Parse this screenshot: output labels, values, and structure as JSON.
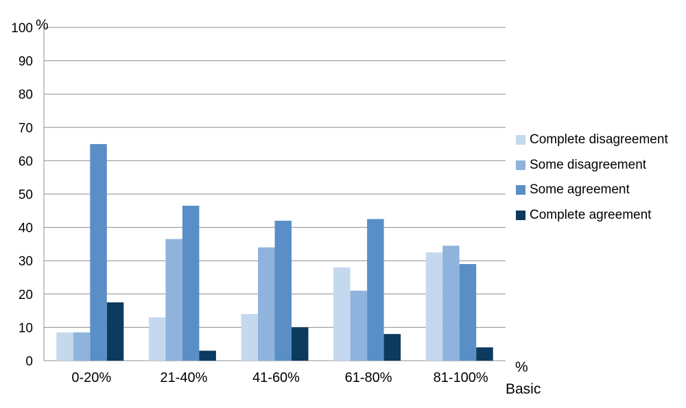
{
  "chart_data": {
    "type": "bar",
    "title": "",
    "ylabel": "%",
    "xlabel": "% Basic",
    "xlabel_lines": [
      "%",
      "Basic"
    ],
    "ylim": [
      0,
      100
    ],
    "yticks": [
      0,
      10,
      20,
      30,
      40,
      50,
      60,
      70,
      80,
      90,
      100
    ],
    "grid": true,
    "legend_position": "right",
    "categories": [
      "0-20%",
      "21-40%",
      "41-60%",
      "61-80%",
      "81-100%"
    ],
    "series": [
      {
        "name": "Complete disagreement",
        "color": "#c5d9ee",
        "values": [
          8.5,
          13,
          14,
          28,
          32.5
        ]
      },
      {
        "name": "Some disagreement",
        "color": "#8fb3dc",
        "values": [
          8.5,
          36.5,
          34,
          21,
          34.5
        ]
      },
      {
        "name": "Some agreement",
        "color": "#5a8ec6",
        "values": [
          65,
          46.5,
          42,
          42.5,
          29
        ]
      },
      {
        "name": "Complete agreement",
        "color": "#0d3a5f",
        "values": [
          17.5,
          3,
          10,
          8,
          4
        ]
      }
    ]
  }
}
